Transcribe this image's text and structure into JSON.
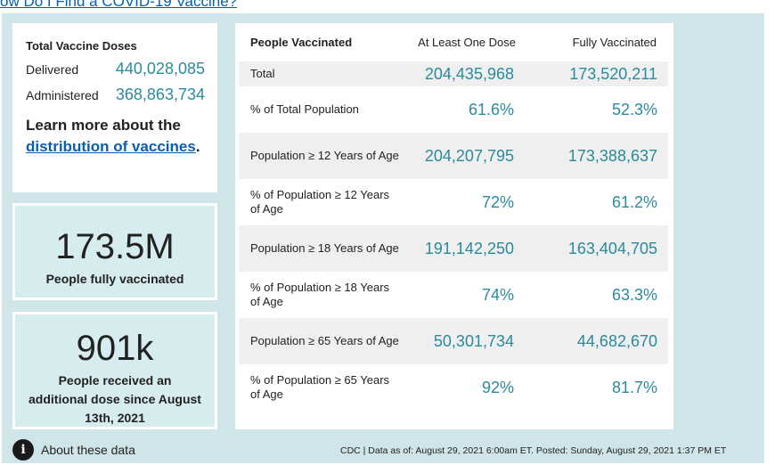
{
  "top_link": {
    "text": "ow Do I Find a COVID-19 Vaccine?"
  },
  "doses": {
    "title": "Total Vaccine Doses",
    "delivered_label": "Delivered",
    "delivered_value": "440,028,085",
    "administered_label": "Administered",
    "administered_value": "368,863,734",
    "learn_prefix": "Learn more about the",
    "learn_link": "distribution of vaccines",
    "learn_suffix": "."
  },
  "stats": [
    {
      "value": "173.5M",
      "label": "People fully vaccinated"
    },
    {
      "value": "901k",
      "label": "People received an additional dose since August 13th, 2021"
    }
  ],
  "table": {
    "headers": [
      "People Vaccinated",
      "At Least One Dose",
      "Fully Vaccinated"
    ],
    "rows": [
      {
        "label": "Total",
        "one_dose": "204,435,968",
        "fully": "173,520,211"
      },
      {
        "label": "% of Total Population",
        "one_dose": "61.6%",
        "fully": "52.3%"
      },
      {
        "label": "Population ≥ 12 Years of Age",
        "one_dose": "204,207,795",
        "fully": "173,388,637"
      },
      {
        "label": "% of Population ≥ 12 Years of Age",
        "one_dose": "72%",
        "fully": "61.2%"
      },
      {
        "label": "Population ≥ 18 Years of Age",
        "one_dose": "191,142,250",
        "fully": "163,404,705"
      },
      {
        "label": "% of Population ≥ 18 Years of Age",
        "one_dose": "74%",
        "fully": "63.3%"
      },
      {
        "label": "Population ≥ 65 Years of Age",
        "one_dose": "50,301,734",
        "fully": "44,682,670"
      },
      {
        "label": "% of Population ≥ 65 Years of Age",
        "one_dose": "92%",
        "fully": "81.7%"
      }
    ]
  },
  "about": {
    "icon": "info-icon",
    "label": "About these data"
  },
  "footer": "CDC | Data as of: August 29, 2021 6:00am ET. Posted: Sunday, August 29, 2021 1:37 PM ET",
  "colors": {
    "panel_bg": "#cfe5ea",
    "value_teal": "#2a8b9c",
    "link_blue": "#0b5ea8"
  }
}
